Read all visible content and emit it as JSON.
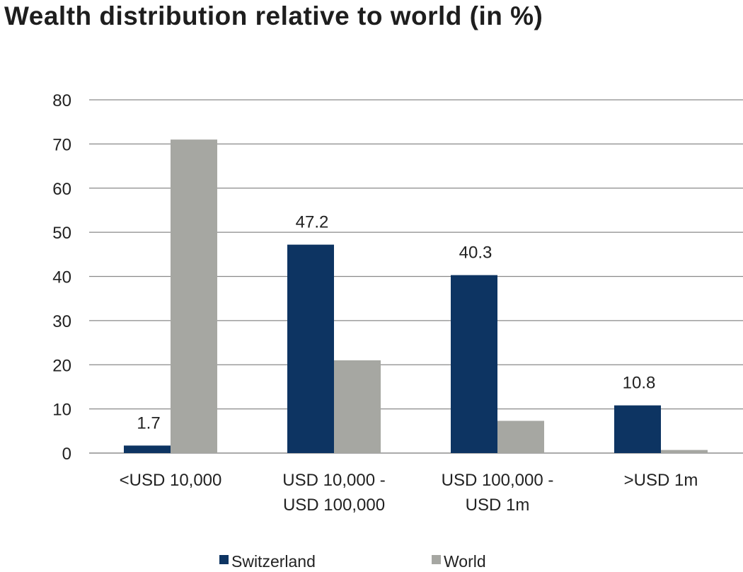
{
  "chart_data": {
    "type": "bar",
    "title": "Wealth distribution relative to world (in %)",
    "categories": [
      [
        "<USD 10,000"
      ],
      [
        "USD 10,000 -",
        "USD 100,000"
      ],
      [
        "USD 100,000 -",
        "USD 1m"
      ],
      [
        ">USD 1m"
      ]
    ],
    "series": [
      {
        "name": "Switzerland",
        "color": "#0d3462",
        "values": [
          1.7,
          47.2,
          40.3,
          10.8
        ],
        "labels": [
          "1.7",
          "47.2",
          "40.3",
          "10.8"
        ]
      },
      {
        "name": "World",
        "color": "#a6a7a2",
        "values": [
          71,
          21,
          7.3,
          0.7
        ]
      }
    ],
    "yticks": [
      "0",
      "10",
      "20",
      "30",
      "40",
      "50",
      "60",
      "70",
      "80"
    ],
    "ylim": [
      0,
      80
    ],
    "grid": true,
    "legend": "bottom",
    "xlabel": "",
    "ylabel": ""
  }
}
